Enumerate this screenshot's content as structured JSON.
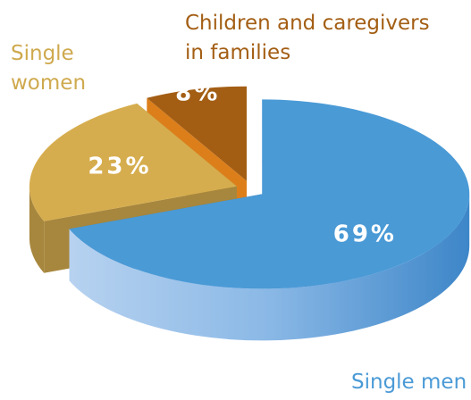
{
  "chart_data": {
    "type": "pie",
    "categories": [
      "Single men",
      "Single women",
      "Children and caregivers in families"
    ],
    "values": [
      69,
      23,
      8
    ],
    "value_labels": [
      "69%",
      "23%",
      "8%"
    ],
    "colors": [
      "#4a9ad6",
      "#d6ad4e",
      "#a35e14"
    ]
  }
}
